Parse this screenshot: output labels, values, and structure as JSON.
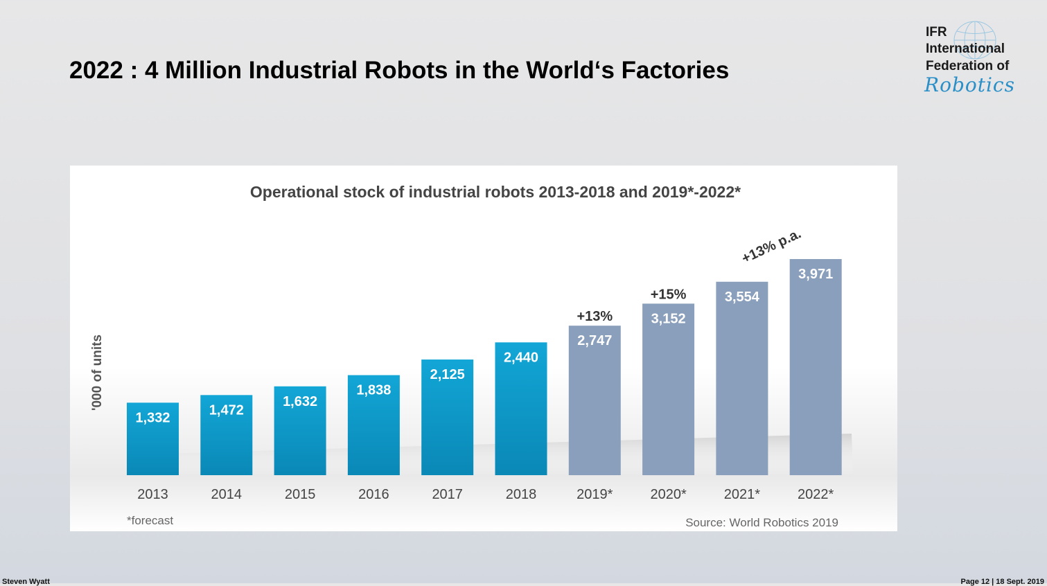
{
  "slide": {
    "title": "2022 : 4 Million Industrial Robots in the World‘s Factories",
    "footer_left": "Steven Wyatt",
    "footer_right": "Page 12 | 18 Sept. 2019"
  },
  "logo": {
    "line1": "IFR",
    "line2": "International",
    "line3": "Federation of",
    "line4": "Robotics"
  },
  "colors": {
    "actual": "#0fa0cf",
    "forecast": "#8a9fbb",
    "brand_blue": "#2a8fc7"
  },
  "chart_data": {
    "type": "bar",
    "title": "Operational stock of industrial robots 2013-2018 and 2019*-2022*",
    "ylabel": "'000 of units",
    "xlabel": "",
    "categories": [
      "2013",
      "2014",
      "2015",
      "2016",
      "2017",
      "2018",
      "2019*",
      "2020*",
      "2021*",
      "2022*"
    ],
    "values": [
      1332,
      1472,
      1632,
      1838,
      2125,
      2440,
      2747,
      3152,
      3554,
      3971
    ],
    "value_labels": [
      "1,332",
      "1,472",
      "1,632",
      "1,838",
      "2,125",
      "2,440",
      "2,747",
      "3,152",
      "3,554",
      "3,971"
    ],
    "forecast": [
      false,
      false,
      false,
      false,
      false,
      false,
      true,
      true,
      true,
      true
    ],
    "growth_annotations": [
      {
        "category": "2019*",
        "text": "+13%"
      },
      {
        "category": "2020*",
        "text": "+15%"
      }
    ],
    "trend_annotation": "+13% p.a.",
    "footnote": "*forecast",
    "source": "Source: World Robotics 2019",
    "ylim": [
      0,
      4400
    ],
    "grid": false,
    "legend": "none"
  }
}
